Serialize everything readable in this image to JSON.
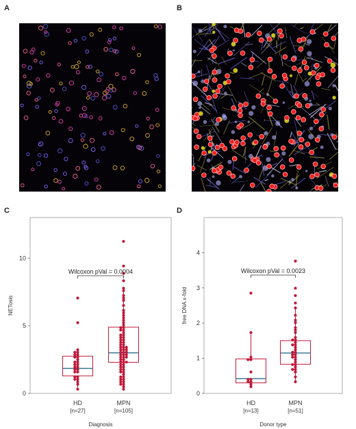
{
  "panels": {
    "a": {
      "letter": "A"
    },
    "b": {
      "letter": "B"
    },
    "c": {
      "letter": "C"
    },
    "d": {
      "letter": "D"
    }
  },
  "colors": {
    "box": "#c0183a",
    "median": "#2a6f8f",
    "point": "#c0183a",
    "axis": "#999999"
  },
  "chart_data": [
    {
      "type": "box",
      "panel": "C",
      "xlabel": "Diagnosis",
      "ylabel": "NETosis",
      "ylim": [
        0,
        13
      ],
      "yticks": [
        0,
        5,
        10
      ],
      "annotation": "Wilcoxon pVal = 0.0004",
      "groups": [
        {
          "name": "HD",
          "n_label": "[n=27]",
          "q1": 1.3,
          "median": 1.85,
          "q3": 2.75,
          "whisker_low": 0.3,
          "whisker_high": 3.3,
          "points": [
            0.3,
            0.6,
            0.9,
            1.0,
            1.1,
            1.2,
            1.3,
            1.5,
            1.6,
            1.7,
            1.8,
            1.9,
            2.0,
            2.1,
            2.2,
            2.3,
            2.4,
            2.5,
            2.6,
            2.7,
            2.8,
            2.9,
            3.0,
            3.1,
            3.3,
            5.2,
            7.0
          ]
        },
        {
          "name": "MPN",
          "n_label": "[n=105]",
          "q1": 2.3,
          "median": 3.0,
          "q3": 4.9,
          "whisker_low": 0.3,
          "whisker_high": 7.8,
          "points": [
            0.3,
            0.5,
            0.6,
            0.7,
            0.8,
            0.9,
            1.0,
            1.1,
            1.2,
            1.3,
            1.4,
            1.5,
            1.6,
            1.7,
            1.8,
            1.9,
            2.0,
            2.1,
            2.2,
            2.3,
            2.35,
            2.4,
            2.5,
            2.55,
            2.6,
            2.7,
            2.75,
            2.8,
            2.9,
            2.95,
            3.0,
            3.05,
            3.1,
            3.15,
            3.2,
            3.3,
            3.35,
            3.4,
            3.5,
            3.55,
            3.6,
            3.7,
            3.8,
            3.9,
            4.0,
            4.1,
            4.2,
            4.3,
            4.4,
            4.5,
            4.6,
            4.7,
            4.8,
            4.9,
            5.0,
            5.2,
            5.4,
            5.6,
            5.8,
            6.0,
            6.2,
            6.5,
            6.8,
            7.0,
            7.3,
            7.6,
            7.8,
            8.3,
            8.8,
            9.5,
            11.3
          ]
        }
      ]
    },
    {
      "type": "box",
      "panel": "D",
      "xlabel": "Donor type",
      "ylabel": "free DNA x-fold",
      "ylim": [
        0,
        5
      ],
      "yticks": [
        0,
        1,
        2,
        3,
        4
      ],
      "annotation": "Wilcoxon pVal = 0.0023",
      "groups": [
        {
          "name": "HD",
          "n_label": "[n=13]",
          "q1": 0.3,
          "median": 0.42,
          "q3": 0.98,
          "whisker_low": 0.2,
          "whisker_high": 1.7,
          "points": [
            0.2,
            0.25,
            0.3,
            0.35,
            0.4,
            0.42,
            0.6,
            0.95,
            0.98,
            1.0,
            1.7,
            2.85
          ]
        },
        {
          "name": "MPN",
          "n_label": "[n=51]",
          "q1": 0.83,
          "median": 1.15,
          "q3": 1.5,
          "whisker_low": 0.3,
          "whisker_high": 2.4,
          "points": [
            0.3,
            0.5,
            0.6,
            0.65,
            0.7,
            0.75,
            0.8,
            0.85,
            0.9,
            0.95,
            1.0,
            1.05,
            1.1,
            1.12,
            1.15,
            1.2,
            1.25,
            1.3,
            1.35,
            1.4,
            1.45,
            1.5,
            1.55,
            1.6,
            1.7,
            1.8,
            1.9,
            2.0,
            2.1,
            2.2,
            2.4,
            2.6,
            2.8,
            3.0,
            3.75
          ]
        }
      ]
    }
  ]
}
